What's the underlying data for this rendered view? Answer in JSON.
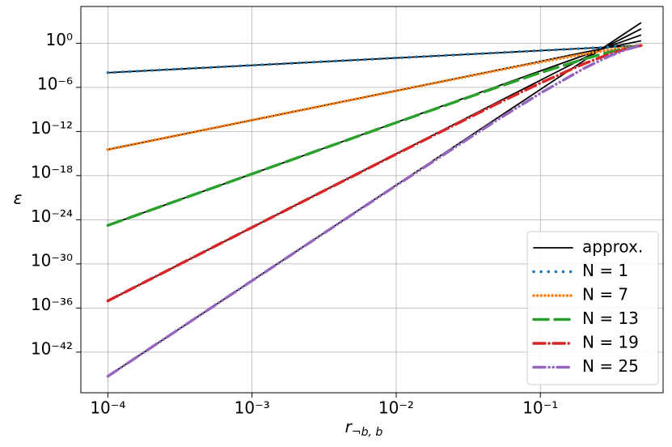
{
  "chart_data": {
    "type": "line",
    "log_x": true,
    "log_y": true,
    "grid": true,
    "legend": "lower right",
    "ylabel": "ε",
    "xlabel": [
      "r",
      "¬b, b"
    ],
    "xlim": [
      6.5e-05,
      0.71
    ],
    "ylim": [
      3e-48,
      100000
    ],
    "xticks": [
      {
        "value": 0.0001,
        "label": "10⁻⁴"
      },
      {
        "value": 0.001,
        "label": "10⁻³"
      },
      {
        "value": 0.01,
        "label": "10⁻²"
      },
      {
        "value": 0.1,
        "label": "10⁻¹"
      }
    ],
    "yticks": [
      {
        "value": 1,
        "label": "10⁰"
      },
      {
        "value": 1e-06,
        "label": "10⁻⁶"
      },
      {
        "value": 1e-12,
        "label": "10⁻¹²"
      },
      {
        "value": 1e-18,
        "label": "10⁻¹⁸"
      },
      {
        "value": 1e-24,
        "label": "10⁻²⁴"
      },
      {
        "value": 1e-30,
        "label": "10⁻³⁰"
      },
      {
        "value": 1e-36,
        "label": "10⁻³⁶"
      },
      {
        "value": 1e-42,
        "label": "10⁻⁴²"
      }
    ],
    "x": [
      0.0001,
      0.001,
      0.01,
      0.05,
      0.1,
      0.2,
      0.3,
      0.4,
      0.5
    ],
    "approx": {
      "name": "approx.",
      "color": "#000000",
      "values": [
        [
          0.0001,
          0.001,
          0.01,
          0.05,
          0.1,
          0.2,
          0.3,
          0.4,
          0.5
        ],
        [
          3.5e-15,
          3.5e-11,
          3.5e-07,
          0.00021875,
          0.0035,
          0.056,
          0.2835,
          0.896,
          2.1875
        ],
        [
          1.716e-25,
          1.716e-18,
          1.716e-11,
          1.3406e-06,
          0.0001716,
          0.021965,
          0.37529,
          2.8115,
          13.406
        ],
        [
          9.2378e-36,
          9.2378e-26,
          9.2378e-16,
          9.022e-09,
          9.2378e-06,
          0.00946,
          0.5455,
          9.6866,
          90.21
        ],
        [
          5.2003e-46,
          5.2003e-33,
          5.2003e-20,
          6.348e-11,
          5.2003e-07,
          0.00426,
          0.8291,
          34.899,
          634.8
        ]
      ]
    },
    "series": [
      {
        "name": "N = 1",
        "color": "#1f77b4",
        "linestyle": "dotted",
        "values": [
          0.0001,
          0.001,
          0.01,
          0.05,
          0.1,
          0.2,
          0.3,
          0.4,
          0.5
        ]
      },
      {
        "name": "N = 7",
        "color": "#ff7f0e",
        "linestyle": "densely-dotted",
        "values": [
          3.499e-15,
          3.49e-11,
          3.4e-07,
          0.000194,
          0.002728,
          0.03334,
          0.126,
          0.2898,
          0.5
        ]
      },
      {
        "name": "N = 13",
        "color": "#2ca02c",
        "linestyle": "dashed",
        "values": [
          1.716e-25,
          1.706e-18,
          1.62e-11,
          1.026e-06,
          9.93e-05,
          0.007003,
          0.0624,
          0.2288,
          0.5
        ]
      },
      {
        "name": "N = 19",
        "color": "#d62728",
        "linestyle": "dashdot",
        "values": [
          9.237e-36,
          9.154e-26,
          8.44e-16,
          5.93e-09,
          3.93e-06,
          0.001578,
          0.03255,
          0.1861,
          0.5
        ]
      },
      {
        "name": "N = 25",
        "color": "#9467bd",
        "linestyle": "dashdotdot",
        "values": [
          5.2e-46,
          5.138e-33,
          4.61e-20,
          3.59e-11,
          1.62e-07,
          0.000369,
          0.01747,
          0.1538,
          0.5
        ]
      }
    ]
  }
}
